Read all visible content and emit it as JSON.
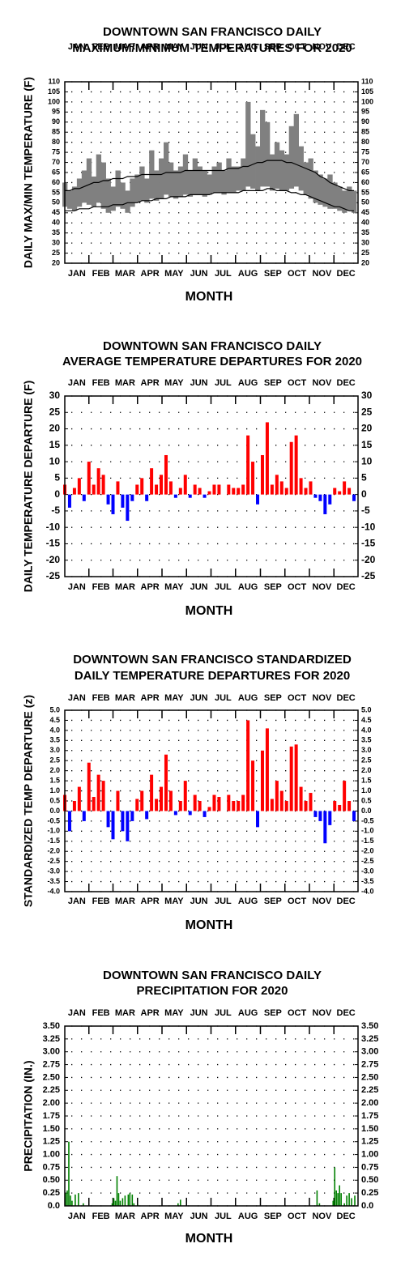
{
  "chart_data": [
    {
      "type": "line",
      "title": [
        "DOWNTOWN SAN FRANCISCO DAILY",
        "MAXIMUM/MINIMUM TEMPERATURES FOR 2020"
      ],
      "xlabel": "MONTH",
      "ylabel": "DAILY MAX/MIN TEMPERATURE (F)",
      "xlim": [
        1,
        366
      ],
      "xticks": [
        {
          "value": 16,
          "label": "JAN"
        },
        {
          "value": 46,
          "label": "FEB"
        },
        {
          "value": 76,
          "label": "MAR"
        },
        {
          "value": 107,
          "label": "APR"
        },
        {
          "value": 137,
          "label": "MAY"
        },
        {
          "value": 168,
          "label": "JUN"
        },
        {
          "value": 198,
          "label": "JUL"
        },
        {
          "value": 229,
          "label": "AUG"
        },
        {
          "value": 260,
          "label": "SEP"
        },
        {
          "value": 290,
          "label": "OCT"
        },
        {
          "value": 321,
          "label": "NOV"
        },
        {
          "value": 351,
          "label": "DEC"
        }
      ],
      "ylim": [
        20,
        110
      ],
      "yticks": [
        20,
        25,
        30,
        35,
        40,
        45,
        50,
        55,
        60,
        65,
        70,
        75,
        80,
        85,
        90,
        95,
        100,
        105,
        110
      ],
      "grid": true,
      "x": [
        1,
        7,
        13,
        19,
        25,
        31,
        37,
        43,
        49,
        55,
        61,
        67,
        73,
        79,
        85,
        91,
        97,
        103,
        109,
        115,
        121,
        127,
        133,
        139,
        145,
        151,
        157,
        163,
        169,
        175,
        181,
        187,
        193,
        199,
        205,
        211,
        217,
        223,
        229,
        235,
        241,
        247,
        253,
        259,
        265,
        271,
        277,
        283,
        289,
        295,
        301,
        307,
        313,
        319,
        325,
        331,
        337,
        343,
        349,
        355,
        361
      ],
      "series": [
        {
          "name": "max",
          "color": "#808080",
          "values": [
            60,
            56,
            58,
            62,
            66,
            72,
            63,
            74,
            70,
            62,
            58,
            66,
            60,
            56,
            62,
            64,
            68,
            62,
            76,
            66,
            72,
            80,
            70,
            66,
            68,
            74,
            66,
            72,
            68,
            66,
            64,
            68,
            70,
            66,
            72,
            68,
            68,
            72,
            100,
            84,
            78,
            96,
            90,
            74,
            80,
            76,
            74,
            88,
            94,
            78,
            70,
            72,
            66,
            64,
            62,
            64,
            60,
            58,
            56,
            58,
            56
          ]
        },
        {
          "name": "min",
          "color": "#808080",
          "values": [
            48,
            47,
            46,
            48,
            50,
            49,
            48,
            50,
            47,
            45,
            46,
            48,
            47,
            45,
            48,
            50,
            51,
            50,
            52,
            51,
            52,
            54,
            53,
            52,
            53,
            54,
            53,
            54,
            54,
            53,
            54,
            55,
            55,
            54,
            55,
            55,
            56,
            56,
            58,
            57,
            56,
            58,
            58,
            56,
            57,
            56,
            56,
            57,
            58,
            56,
            54,
            52,
            50,
            49,
            48,
            47,
            47,
            46,
            45,
            46,
            45
          ]
        },
        {
          "name": "normal max",
          "color": "#000000",
          "values": [
            56,
            56,
            57,
            57,
            58,
            59,
            60,
            60,
            61,
            61,
            62,
            62,
            62,
            63,
            63,
            63,
            64,
            64,
            64,
            64,
            64,
            65,
            65,
            65,
            65,
            66,
            66,
            66,
            66,
            66,
            66,
            66,
            66,
            66,
            67,
            67,
            67,
            68,
            68,
            69,
            70,
            70,
            71,
            71,
            71,
            71,
            70,
            70,
            69,
            68,
            67,
            66,
            65,
            63,
            62,
            60,
            59,
            58,
            57,
            56,
            56
          ]
        },
        {
          "name": "normal min",
          "color": "#000000",
          "values": [
            46,
            46,
            46,
            47,
            47,
            47,
            48,
            48,
            48,
            48,
            49,
            49,
            49,
            50,
            50,
            50,
            51,
            51,
            51,
            52,
            52,
            52,
            53,
            53,
            53,
            53,
            54,
            54,
            54,
            54,
            54,
            55,
            55,
            55,
            55,
            55,
            55,
            56,
            56,
            56,
            56,
            56,
            57,
            57,
            56,
            56,
            56,
            55,
            55,
            54,
            54,
            53,
            52,
            51,
            50,
            49,
            48,
            48,
            47,
            46,
            46
          ]
        }
      ]
    },
    {
      "type": "bar",
      "title": [
        "DOWNTOWN SAN FRANCISCO DAILY",
        "AVERAGE TEMPERATURE DEPARTURES FOR 2020"
      ],
      "xlabel": "MONTH",
      "ylabel": "DAILY TEMPERATURE DEPARTURE (F)",
      "xlim": [
        1,
        366
      ],
      "xticks": [
        {
          "value": 16,
          "label": "JAN"
        },
        {
          "value": 46,
          "label": "FEB"
        },
        {
          "value": 76,
          "label": "MAR"
        },
        {
          "value": 107,
          "label": "APR"
        },
        {
          "value": 137,
          "label": "MAY"
        },
        {
          "value": 168,
          "label": "JUN"
        },
        {
          "value": 198,
          "label": "JUL"
        },
        {
          "value": 229,
          "label": "AUG"
        },
        {
          "value": 260,
          "label": "SEP"
        },
        {
          "value": 290,
          "label": "OCT"
        },
        {
          "value": 321,
          "label": "NOV"
        },
        {
          "value": 351,
          "label": "DEC"
        }
      ],
      "ylim": [
        -25,
        30
      ],
      "yticks": [
        -25,
        -20,
        -15,
        -10,
        -5,
        0,
        5,
        10,
        15,
        20,
        25,
        30
      ],
      "grid": true,
      "color": "#ff0000",
      "negative_color": "#0000ff",
      "x": [
        1,
        7,
        13,
        19,
        25,
        31,
        37,
        43,
        49,
        55,
        61,
        67,
        73,
        79,
        85,
        91,
        97,
        103,
        109,
        115,
        121,
        127,
        133,
        139,
        145,
        151,
        157,
        163,
        169,
        175,
        181,
        187,
        193,
        199,
        205,
        211,
        217,
        223,
        229,
        235,
        241,
        247,
        253,
        259,
        265,
        271,
        277,
        283,
        289,
        295,
        301,
        307,
        313,
        319,
        325,
        331,
        337,
        343,
        349,
        355,
        361
      ],
      "values": [
        3,
        -4,
        2,
        5,
        -2,
        10,
        3,
        8,
        6,
        -3,
        -6,
        4,
        -4,
        -8,
        -2,
        3,
        5,
        -2,
        8,
        3,
        6,
        12,
        4,
        -1,
        2,
        6,
        -1,
        3,
        2,
        -1,
        1,
        3,
        3,
        0,
        3,
        2,
        2,
        3,
        18,
        10,
        -3,
        12,
        22,
        3,
        6,
        4,
        2,
        16,
        18,
        5,
        2,
        4,
        -1,
        -2,
        -6,
        -3,
        2,
        1,
        4,
        2,
        -2
      ]
    },
    {
      "type": "bar",
      "title": [
        "DOWNTOWN SAN FRANCISCO STANDARDIZED",
        "DAILY TEMPERATURE DEPARTURES FOR 2020"
      ],
      "xlabel": "MONTH",
      "ylabel": "STANDARDIZED TEMP DEPARTURE (z)",
      "xlim": [
        1,
        366
      ],
      "xticks": [
        {
          "value": 16,
          "label": "JAN"
        },
        {
          "value": 46,
          "label": "FEB"
        },
        {
          "value": 76,
          "label": "MAR"
        },
        {
          "value": 107,
          "label": "APR"
        },
        {
          "value": 137,
          "label": "MAY"
        },
        {
          "value": 168,
          "label": "JUN"
        },
        {
          "value": 198,
          "label": "JUL"
        },
        {
          "value": 229,
          "label": "AUG"
        },
        {
          "value": 260,
          "label": "SEP"
        },
        {
          "value": 290,
          "label": "OCT"
        },
        {
          "value": 321,
          "label": "NOV"
        },
        {
          "value": 351,
          "label": "DEC"
        }
      ],
      "ylim": [
        -4,
        5
      ],
      "yticks": [
        {
          "value": -4,
          "label": "-4.0"
        },
        -3.5,
        {
          "value": -3,
          "label": "-3.0"
        },
        -2.5,
        {
          "value": -2,
          "label": "-2.0"
        },
        -1.5,
        {
          "value": -1,
          "label": "-1.0"
        },
        -0.5,
        {
          "value": 0,
          "label": "0.0"
        },
        0.5,
        {
          "value": 1,
          "label": "1.0"
        },
        1.5,
        {
          "value": 2,
          "label": "2.0"
        },
        2.5,
        {
          "value": 3,
          "label": "3.0"
        },
        3.5,
        {
          "value": 4,
          "label": "4.0"
        },
        4.5,
        {
          "value": 5,
          "label": "5.0"
        }
      ],
      "grid": true,
      "color": "#ff0000",
      "negative_color": "#0000ff",
      "x": [
        1,
        7,
        13,
        19,
        25,
        31,
        37,
        43,
        49,
        55,
        61,
        67,
        73,
        79,
        85,
        91,
        97,
        103,
        109,
        115,
        121,
        127,
        133,
        139,
        145,
        151,
        157,
        163,
        169,
        175,
        181,
        187,
        193,
        199,
        205,
        211,
        217,
        223,
        229,
        235,
        241,
        247,
        253,
        259,
        265,
        271,
        277,
        283,
        289,
        295,
        301,
        307,
        313,
        319,
        325,
        331,
        337,
        343,
        349,
        355,
        361
      ],
      "values": [
        0.8,
        -1.0,
        0.5,
        1.2,
        -0.5,
        2.4,
        0.7,
        1.8,
        1.5,
        -0.8,
        -1.4,
        1.0,
        -1.0,
        -1.5,
        -0.5,
        0.6,
        1.0,
        -0.4,
        1.8,
        0.6,
        1.2,
        2.8,
        1.0,
        -0.2,
        0.5,
        1.5,
        -0.2,
        0.8,
        0.5,
        -0.3,
        0.2,
        0.8,
        0.7,
        0.0,
        0.8,
        0.5,
        0.5,
        0.8,
        4.5,
        2.5,
        -0.8,
        3.0,
        4.1,
        0.6,
        1.5,
        1.0,
        0.5,
        3.2,
        3.3,
        1.2,
        0.5,
        0.9,
        -0.3,
        -0.5,
        -1.6,
        -0.7,
        0.5,
        0.3,
        1.5,
        0.5,
        -0.5
      ]
    },
    {
      "type": "bar",
      "title": [
        "DOWNTOWN SAN FRANCISCO DAILY",
        "PRECIPITATION FOR 2020"
      ],
      "xlabel": "MONTH",
      "ylabel": "PRECIPITATION (IN.)",
      "xlim": [
        1,
        366
      ],
      "xticks": [
        {
          "value": 16,
          "label": "JAN"
        },
        {
          "value": 46,
          "label": "FEB"
        },
        {
          "value": 76,
          "label": "MAR"
        },
        {
          "value": 107,
          "label": "APR"
        },
        {
          "value": 137,
          "label": "MAY"
        },
        {
          "value": 168,
          "label": "JUN"
        },
        {
          "value": 198,
          "label": "JUL"
        },
        {
          "value": 229,
          "label": "AUG"
        },
        {
          "value": 260,
          "label": "SEP"
        },
        {
          "value": 290,
          "label": "OCT"
        },
        {
          "value": 321,
          "label": "NOV"
        },
        {
          "value": 351,
          "label": "DEC"
        }
      ],
      "ylim": [
        0,
        3.5
      ],
      "yticks": [
        {
          "value": 0,
          "label": "0.0"
        },
        0.25,
        {
          "value": 0.5,
          "label": "0.50"
        },
        0.75,
        {
          "value": 1,
          "label": "1.00"
        },
        1.25,
        {
          "value": 1.5,
          "label": "1.50"
        },
        1.75,
        {
          "value": 2,
          "label": "2.00"
        },
        2.25,
        {
          "value": 2.5,
          "label": "2.50"
        },
        2.75,
        {
          "value": 3,
          "label": "3.00"
        },
        3.25,
        {
          "value": 3.5,
          "label": "3.50"
        }
      ],
      "grid": true,
      "color": "#008000",
      "x": [
        2,
        4,
        6,
        8,
        10,
        14,
        18,
        24,
        60,
        62,
        64,
        66,
        68,
        70,
        73,
        76,
        80,
        82,
        85,
        87,
        92,
        142,
        145,
        315,
        318,
        335,
        337,
        339,
        341,
        343,
        345,
        349,
        352,
        355,
        358,
        362
      ],
      "values": [
        0.25,
        0.3,
        1.25,
        0.2,
        0.1,
        0.22,
        0.25,
        0.05,
        0.05,
        0.15,
        0.1,
        0.58,
        0.25,
        0.1,
        0.15,
        0.2,
        0.22,
        0.25,
        0.22,
        0.05,
        0.02,
        0.05,
        0.12,
        0.3,
        0.05,
        0.1,
        0.75,
        0.3,
        0.25,
        0.4,
        0.25,
        0.05,
        0.2,
        0.25,
        0.15,
        0.2
      ]
    }
  ]
}
